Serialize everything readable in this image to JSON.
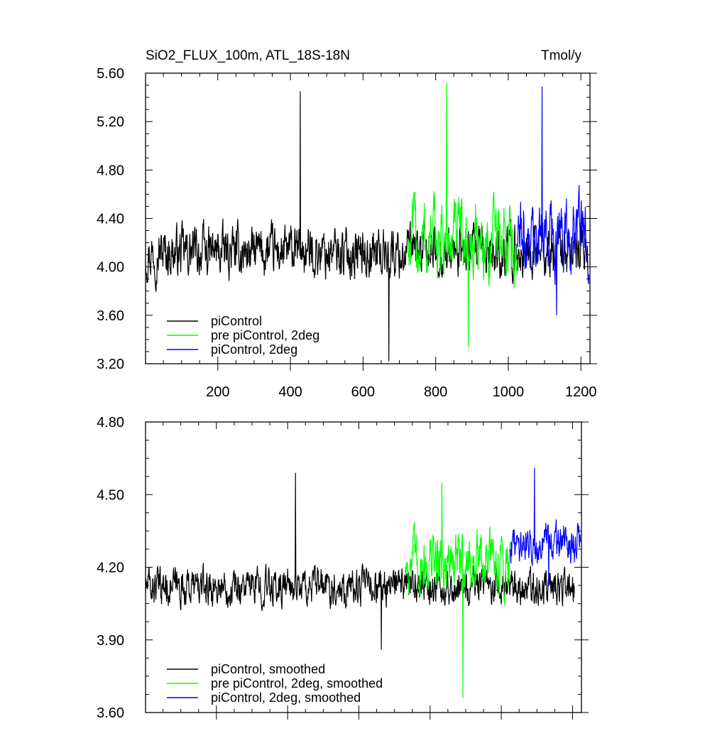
{
  "chart_data": [
    {
      "type": "line",
      "title_left": "SiO2_FLUX_100m, ATL_18S-18N",
      "title_right": "Tmol/y",
      "xlim": [
        1,
        1225
      ],
      "ylim": [
        3.2,
        5.6
      ],
      "xticks": [
        200,
        400,
        600,
        800,
        1000,
        1200
      ],
      "xtick_labels": [
        "200",
        "400",
        "600",
        "800",
        "1000",
        "1200"
      ],
      "yticks": [
        3.2,
        3.6,
        4.0,
        4.4,
        4.8,
        5.2,
        5.6
      ],
      "ytick_labels": [
        "3.20",
        "3.60",
        "4.00",
        "4.40",
        "4.80",
        "5.20",
        "5.60"
      ],
      "grid": false,
      "legend_position": "bottom-left",
      "series": [
        {
          "name": "piControl",
          "color": "#000000",
          "x_range": [
            1,
            1220
          ],
          "mean": 4.12,
          "amp": 0.16,
          "spike_max": 5.45,
          "spike_min": 3.22,
          "noise": 0.55
        },
        {
          "name": "pre piControl, 2deg",
          "color": "#00ff00",
          "x_range": [
            725,
            1025
          ],
          "mean": 4.2,
          "amp": 0.22,
          "spike_max": 5.52,
          "spike_min": 3.34,
          "noise": 0.7
        },
        {
          "name": "piControl, 2deg",
          "color": "#0000ff",
          "x_range": [
            1025,
            1222
          ],
          "mean": 4.28,
          "amp": 0.2,
          "spike_max": 5.49,
          "spike_min": 3.6,
          "noise": 0.65
        }
      ]
    },
    {
      "type": "line",
      "xlim": [
        1,
        1225
      ],
      "ylim": [
        3.6,
        4.8
      ],
      "xticks": [
        200,
        400,
        600,
        800,
        1000,
        1200
      ],
      "yticks": [
        3.6,
        3.9,
        4.2,
        4.5,
        4.8
      ],
      "ytick_labels": [
        "3.60",
        "3.90",
        "4.20",
        "4.50",
        "4.80"
      ],
      "grid": false,
      "legend_position": "bottom-left",
      "series": [
        {
          "name": "piControl, smoothed",
          "color": "#000000",
          "x_range": [
            1,
            1205
          ],
          "mean": 4.12,
          "amp": 0.06,
          "spike_max": 4.59,
          "spike_min": 3.86,
          "noise": 0.5
        },
        {
          "name": "pre piControl, 2deg, smoothed",
          "color": "#00ff00",
          "x_range": [
            730,
            1025
          ],
          "mean": 4.22,
          "amp": 0.09,
          "spike_max": 4.55,
          "spike_min": 3.66,
          "noise": 0.6
        },
        {
          "name": "piControl, 2deg, smoothed",
          "color": "#0000ff",
          "x_range": [
            1025,
            1222
          ],
          "mean": 4.3,
          "amp": 0.06,
          "spike_max": 4.61,
          "spike_min": 4.12,
          "noise": 0.55
        }
      ]
    }
  ]
}
